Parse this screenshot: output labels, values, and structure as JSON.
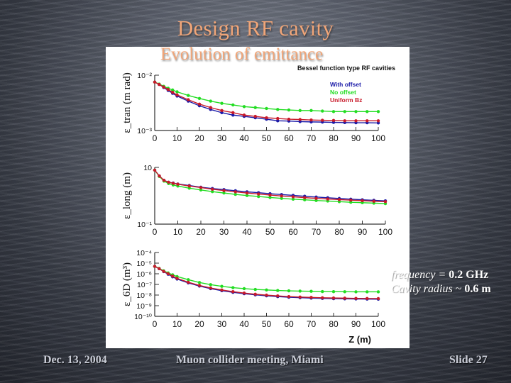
{
  "slide": {
    "title": "Design RF cavity",
    "subtitle": "Evolution of emittance",
    "footer_left": "Dec. 13, 2004",
    "footer_center": "Muon collider meeting, Miami",
    "footer_right": "Slide 27",
    "notes": {
      "line1_prefix": "frequency = ",
      "line1_value": "0.2 GHz",
      "line2_prefix": "Cavity radius ~ ",
      "line2_value": "0.6 m"
    }
  },
  "colors": {
    "with_offset": "#1a1aa8",
    "no_offset": "#22dd22",
    "uniform_bz": "#c81a2a",
    "title": "#f0a578"
  },
  "chart_data": [
    {
      "type": "line",
      "title": "Bessel function type RF cavities",
      "ylabel": "ε_tran (m rad)",
      "xlabel": "",
      "y_scale": "log",
      "ylim": [
        0.001,
        0.01
      ],
      "xlim": [
        0,
        100
      ],
      "x_ticks": [
        "0",
        "10",
        "20",
        "30",
        "40",
        "50",
        "60",
        "70",
        "80",
        "90",
        "100"
      ],
      "y_tick_labels": [
        "10⁻²",
        "10⁻³"
      ],
      "legend": {
        "placement": "top-right",
        "entries": [
          "With offset",
          "No offset",
          "Uniform Bz"
        ]
      },
      "x": [
        0,
        2,
        4,
        6,
        8,
        10,
        15,
        20,
        25,
        30,
        35,
        40,
        45,
        50,
        55,
        60,
        65,
        70,
        75,
        80,
        85,
        90,
        95,
        100
      ],
      "series": [
        {
          "name": "With offset",
          "values": [
            0.0075,
            0.0068,
            0.006,
            0.0053,
            0.0047,
            0.0042,
            0.0034,
            0.0028,
            0.0024,
            0.0021,
            0.0019,
            0.0018,
            0.0017,
            0.0016,
            0.0015,
            0.00148,
            0.00145,
            0.00143,
            0.00142,
            0.0014,
            0.00139,
            0.00138,
            0.00138,
            0.00137
          ]
        },
        {
          "name": "No offset",
          "values": [
            0.0075,
            0.0069,
            0.0063,
            0.0058,
            0.0054,
            0.005,
            0.0043,
            0.0038,
            0.0034,
            0.0031,
            0.0029,
            0.0027,
            0.0026,
            0.0025,
            0.0024,
            0.00235,
            0.0023,
            0.0023,
            0.00225,
            0.0022,
            0.0022,
            0.0022,
            0.0022,
            0.0022
          ]
        },
        {
          "name": "Uniform Bz",
          "values": [
            0.0075,
            0.0068,
            0.0061,
            0.0055,
            0.0049,
            0.0044,
            0.0036,
            0.003,
            0.0026,
            0.0023,
            0.0021,
            0.0019,
            0.0018,
            0.0017,
            0.00165,
            0.0016,
            0.00158,
            0.00155,
            0.00153,
            0.00152,
            0.0015,
            0.0015,
            0.0015,
            0.0015
          ]
        }
      ]
    },
    {
      "type": "line",
      "ylabel": "ε_long (m)",
      "xlabel": "",
      "y_scale": "log",
      "ylim": [
        0.1,
        10
      ],
      "xlim": [
        0,
        100
      ],
      "x_ticks": [
        "0",
        "10",
        "20",
        "30",
        "40",
        "50",
        "60",
        "70",
        "80",
        "90",
        "100"
      ],
      "y_tick_labels": [
        "10",
        "10⁻¹"
      ],
      "x": [
        0,
        2,
        4,
        6,
        8,
        10,
        15,
        20,
        25,
        30,
        35,
        40,
        45,
        50,
        55,
        60,
        65,
        70,
        75,
        80,
        85,
        90,
        95,
        100
      ],
      "series": [
        {
          "name": "With offset",
          "values": [
            8.0,
            5.0,
            3.5,
            3.0,
            2.8,
            2.6,
            2.3,
            2.0,
            1.8,
            1.65,
            1.5,
            1.38,
            1.28,
            1.18,
            1.1,
            1.03,
            0.96,
            0.9,
            0.85,
            0.8,
            0.76,
            0.72,
            0.69,
            0.66
          ]
        },
        {
          "name": "No offset",
          "values": [
            8.0,
            4.8,
            3.3,
            2.7,
            2.4,
            2.2,
            1.85,
            1.6,
            1.4,
            1.25,
            1.12,
            1.02,
            0.94,
            0.87,
            0.81,
            0.76,
            0.72,
            0.68,
            0.65,
            0.62,
            0.59,
            0.57,
            0.55,
            0.53
          ]
        },
        {
          "name": "Uniform Bz",
          "values": [
            8.0,
            5.0,
            3.5,
            3.0,
            2.75,
            2.55,
            2.2,
            1.95,
            1.7,
            1.52,
            1.38,
            1.25,
            1.15,
            1.06,
            0.98,
            0.92,
            0.86,
            0.81,
            0.77,
            0.73,
            0.7,
            0.67,
            0.64,
            0.62
          ]
        }
      ]
    },
    {
      "type": "line",
      "ylabel": "ε_6D (m³)",
      "xlabel": "Z (m)",
      "y_scale": "log",
      "ylim": [
        1e-10,
        0.0001
      ],
      "xlim": [
        0,
        100
      ],
      "x_ticks": [
        "0",
        "10",
        "20",
        "30",
        "40",
        "50",
        "60",
        "70",
        "80",
        "90",
        "100"
      ],
      "y_tick_labels": [
        "10⁻⁴",
        "10⁻⁵",
        "10⁻⁶",
        "10⁻⁷",
        "10⁻⁸",
        "10⁻⁹",
        "10⁻¹⁰"
      ],
      "x": [
        0,
        2,
        4,
        6,
        8,
        10,
        15,
        20,
        25,
        30,
        35,
        40,
        45,
        50,
        55,
        60,
        65,
        70,
        75,
        80,
        85,
        90,
        95,
        100
      ],
      "series": [
        {
          "name": "With offset",
          "values": [
            5e-06,
            3e-06,
            1.6e-06,
            9e-07,
            5.2e-07,
            3.2e-07,
            1.4e-07,
            7e-08,
            4e-08,
            2.6e-08,
            1.8e-08,
            1.35e-08,
            1.05e-08,
            8.5e-09,
            7.2e-09,
            6.3e-09,
            5.7e-09,
            5.2e-09,
            4.9e-09,
            4.6e-09,
            4.4e-09,
            4.3e-09,
            4.2e-09,
            4.1e-09
          ]
        },
        {
          "name": "No offset",
          "values": [
            5e-06,
            3.2e-06,
            1.9e-06,
            1.2e-06,
            8e-07,
            5.5e-07,
            2.8e-07,
            1.5e-07,
            9.5e-08,
            6.6e-08,
            5e-08,
            4e-08,
            3.4e-08,
            3e-08,
            2.7e-08,
            2.5e-08,
            2.35e-08,
            2.25e-08,
            2.15e-08,
            2.1e-08,
            2.05e-08,
            2e-08,
            2e-08,
            2e-08
          ]
        },
        {
          "name": "Uniform Bz",
          "values": [
            5e-06,
            3e-06,
            1.7e-06,
            1e-06,
            6e-07,
            3.7e-07,
            1.6e-07,
            8e-08,
            4.6e-08,
            3e-08,
            2.1e-08,
            1.55e-08,
            1.2e-08,
            9.8e-09,
            8.3e-09,
            7.2e-09,
            6.5e-09,
            6e-09,
            5.6e-09,
            5.3e-09,
            5.1e-09,
            4.9e-09,
            4.8e-09,
            4.7e-09
          ]
        }
      ]
    }
  ]
}
